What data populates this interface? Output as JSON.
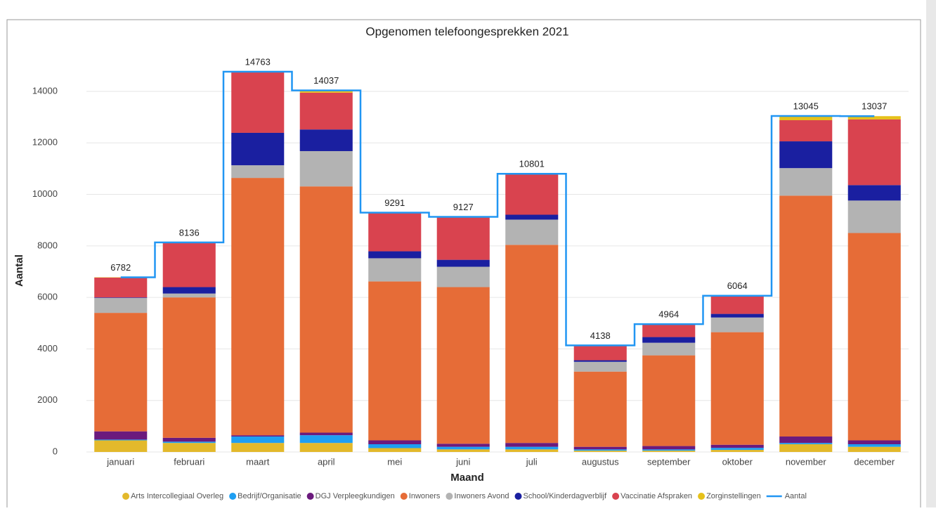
{
  "chart_data": {
    "type": "stacked-bar-step-line",
    "title": "Opgenomen telefoongesprekken 2021",
    "x_label": "Maand",
    "y_label": "Aantal",
    "categories": [
      "januari",
      "februari",
      "maart",
      "april",
      "mei",
      "juni",
      "juli",
      "augustus",
      "september",
      "oktober",
      "november",
      "december"
    ],
    "ylim": [
      0,
      15500
    ],
    "yticks": [
      0,
      2000,
      4000,
      6000,
      8000,
      10000,
      12000,
      14000
    ],
    "grid": true,
    "legend": "bottom",
    "series": [
      {
        "name": "Arts Intercollegiaal Overleg",
        "color": "#e3b92b",
        "values": [
          450,
          350,
          350,
          350,
          150,
          100,
          100,
          50,
          50,
          80,
          300,
          200
        ]
      },
      {
        "name": "Bedrijf/Organisatie",
        "color": "#1e9ff2",
        "values": [
          30,
          50,
          250,
          300,
          150,
          100,
          100,
          50,
          50,
          80,
          50,
          100
        ]
      },
      {
        "name": "DGJ Verpleegkundigen",
        "color": "#6b1a7d",
        "values": [
          320,
          150,
          50,
          100,
          150,
          120,
          150,
          100,
          130,
          120,
          250,
          150
        ]
      },
      {
        "name": "Inwoners",
        "color": "#e66c37",
        "values": [
          4600,
          5450,
          9990,
          9560,
          6170,
          6080,
          7690,
          2920,
          3520,
          4370,
          9350,
          8050
        ]
      },
      {
        "name": "Inwoners Avond",
        "color": "#b3b3b3",
        "values": [
          580,
          150,
          490,
          1370,
          900,
          790,
          980,
          380,
          490,
          570,
          1070,
          1260
        ]
      },
      {
        "name": "School/Kinderdagverblijf",
        "color": "#1a1fa0",
        "values": [
          20,
          250,
          1260,
          840,
          270,
          270,
          190,
          60,
          220,
          140,
          1040,
          600
        ]
      },
      {
        "name": "Vaccinatie Afspraken",
        "color": "#d9434f",
        "values": [
          770,
          1720,
          2350,
          1430,
          1480,
          1640,
          1560,
          570,
          490,
          680,
          820,
          2550
        ]
      },
      {
        "name": "Zorginstellingen",
        "color": "#e6c11a",
        "values": [
          12,
          16,
          23,
          87,
          21,
          27,
          31,
          8,
          14,
          24,
          165,
          127
        ]
      },
      {
        "name": "Aantal",
        "color": "#2196f3",
        "kind": "line",
        "values": [
          6782,
          8136,
          14763,
          14037,
          9291,
          9127,
          10801,
          4138,
          4964,
          6064,
          13045,
          13037
        ]
      }
    ]
  }
}
